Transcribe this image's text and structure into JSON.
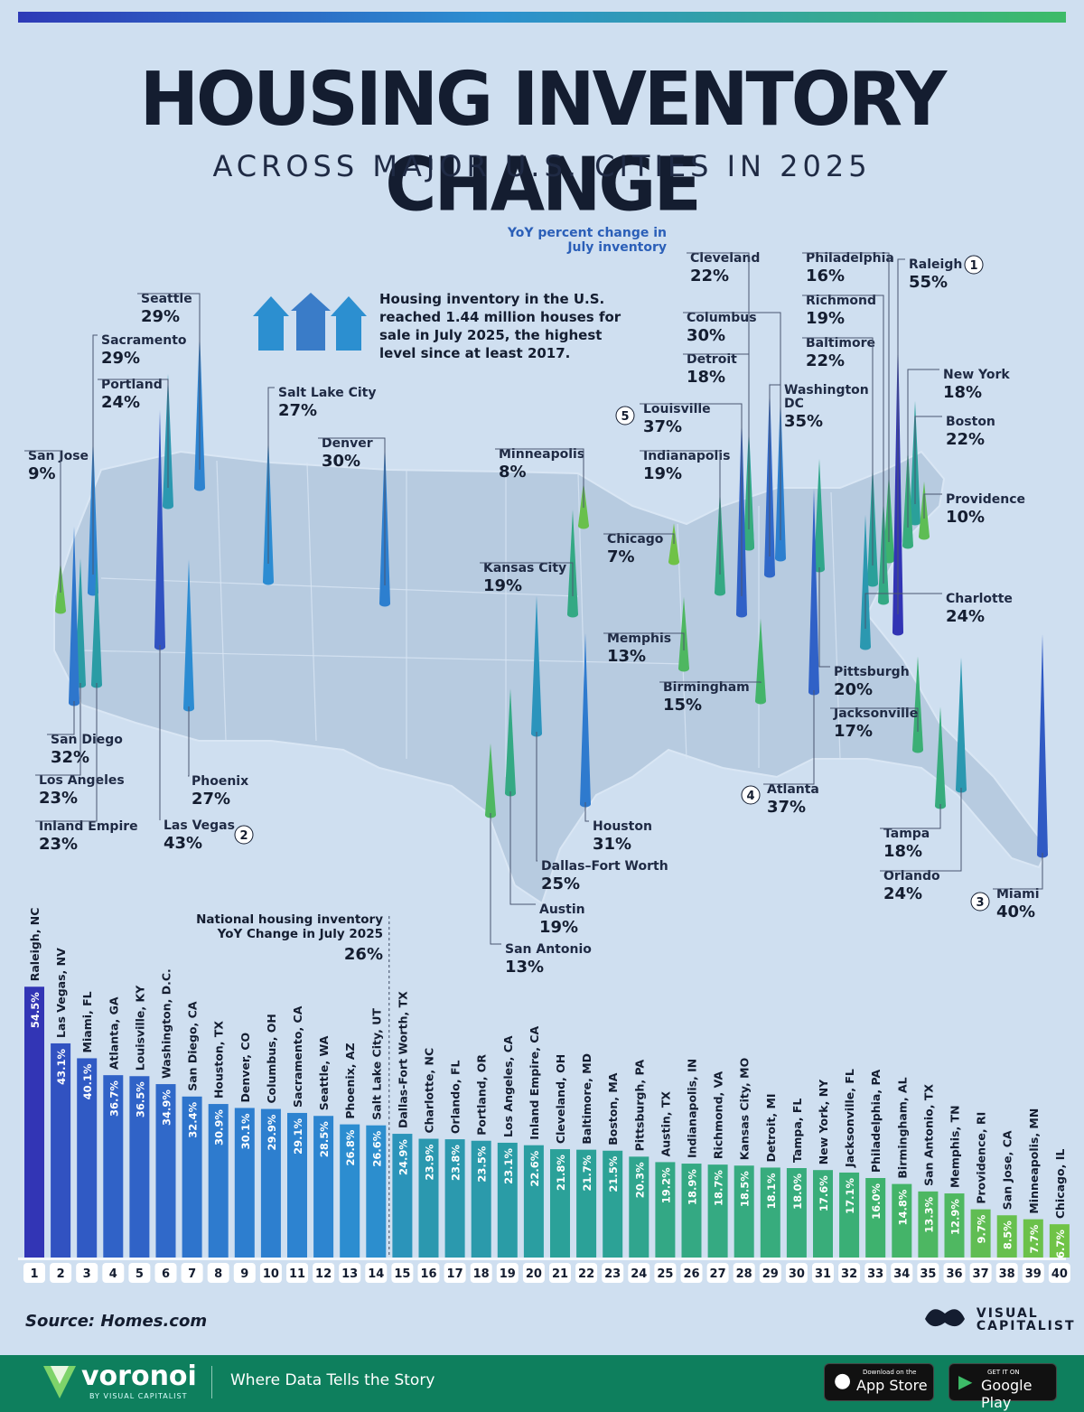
{
  "title": "HOUSING INVENTORY CHANGE",
  "subtitle": "ACROSS MAJOR U.S. CITIES IN 2025",
  "legend_note": "YoY percent change in July inventory",
  "intro": "Housing inventory in the U.S. reached 1.44 million houses for sale in July 2025, the highest level since at least 2017.",
  "national": {
    "label": "National housing inventory YoY Change in July 2025",
    "value": "26%"
  },
  "source": "Source: Homes.com",
  "vc_logo": "VISUAL CAPITALIST",
  "footer": {
    "brand": "voronoi",
    "brand_sub": "BY VISUAL CAPITALIST",
    "tagline": "Where Data Tells the Story",
    "appstore_small": "Download on the",
    "appstore": "App Store",
    "googleplay_small": "GET IT ON",
    "googleplay": "Google Play"
  },
  "colors": {
    "high": "#3338b5",
    "mid": "#2c8fd0",
    "teal": "#2aa39a",
    "low": "#74c443",
    "background": "#cfdff0"
  },
  "map_labels": [
    {
      "city": "Raleigh",
      "value": "55%",
      "rank": "1"
    },
    {
      "city": "Las Vegas",
      "value": "43%",
      "rank": "2"
    },
    {
      "city": "Miami",
      "value": "40%",
      "rank": "3"
    },
    {
      "city": "Atlanta",
      "value": "37%",
      "rank": "4"
    },
    {
      "city": "Louisville",
      "value": "37%",
      "rank": "5"
    },
    {
      "city": "Washington DC",
      "value": "35%"
    },
    {
      "city": "San Diego",
      "value": "32%"
    },
    {
      "city": "Houston",
      "value": "31%"
    },
    {
      "city": "Denver",
      "value": "30%"
    },
    {
      "city": "Columbus",
      "value": "30%"
    },
    {
      "city": "Sacramento",
      "value": "29%"
    },
    {
      "city": "Seattle",
      "value": "29%"
    },
    {
      "city": "Phoenix",
      "value": "27%"
    },
    {
      "city": "Salt Lake City",
      "value": "27%"
    },
    {
      "city": "Dallas–Fort Worth",
      "value": "25%"
    },
    {
      "city": "Charlotte",
      "value": "24%"
    },
    {
      "city": "Orlando",
      "value": "24%"
    },
    {
      "city": "Portland",
      "value": "24%"
    },
    {
      "city": "Los Angeles",
      "value": "23%"
    },
    {
      "city": "Inland Empire",
      "value": "23%"
    },
    {
      "city": "Cleveland",
      "value": "22%"
    },
    {
      "city": "Baltimore",
      "value": "22%"
    },
    {
      "city": "Boston",
      "value": "22%"
    },
    {
      "city": "Pittsburgh",
      "value": "20%"
    },
    {
      "city": "Austin",
      "value": "19%"
    },
    {
      "city": "Indianapolis",
      "value": "19%"
    },
    {
      "city": "Richmond",
      "value": "19%"
    },
    {
      "city": "Kansas City",
      "value": "19%"
    },
    {
      "city": "Detroit",
      "value": "18%"
    },
    {
      "city": "Tampa",
      "value": "18%"
    },
    {
      "city": "New York",
      "value": "18%"
    },
    {
      "city": "Jacksonville",
      "value": "17%"
    },
    {
      "city": "Philadelphia",
      "value": "16%"
    },
    {
      "city": "Birmingham",
      "value": "15%"
    },
    {
      "city": "San Antonio",
      "value": "13%"
    },
    {
      "city": "Memphis",
      "value": "13%"
    },
    {
      "city": "Providence",
      "value": "10%"
    },
    {
      "city": "San Jose",
      "value": "9%"
    },
    {
      "city": "Minneapolis",
      "value": "8%"
    },
    {
      "city": "Chicago",
      "value": "7%"
    }
  ],
  "chart_data": {
    "type": "bar",
    "categories": [
      "Raleigh, NC",
      "Las Vegas, NV",
      "Miami, FL",
      "Atlanta, GA",
      "Louisville, KY",
      "Washington, D.C.",
      "San Diego, CA",
      "Houston, TX",
      "Denver, CO",
      "Columbus, OH",
      "Sacramento, CA",
      "Seattle, WA",
      "Phoenix, AZ",
      "Salt Lake City, UT",
      "Dallas-Fort Worth, TX",
      "Charlotte, NC",
      "Orlando, FL",
      "Portland, OR",
      "Los Angeles, CA",
      "Inland Empire, CA",
      "Cleveland, OH",
      "Baltimore, MD",
      "Boston, MA",
      "Pittsburgh, PA",
      "Austin, TX",
      "Indianapolis, IN",
      "Richmond, VA",
      "Kansas City, MO",
      "Detroit, MI",
      "Tampa, FL",
      "New York, NY",
      "Jacksonville, FL",
      "Philadelphia, PA",
      "Birmingham, AL",
      "San Antonio, TX",
      "Memphis, TN",
      "Providence, RI",
      "San Jose, CA",
      "Minneapolis, MN",
      "Chicago, IL"
    ],
    "values": [
      54.5,
      43.1,
      40.1,
      36.7,
      36.5,
      34.9,
      32.4,
      30.9,
      30.1,
      29.9,
      29.1,
      28.5,
      26.8,
      26.6,
      24.9,
      23.9,
      23.8,
      23.5,
      23.1,
      22.6,
      21.8,
      21.7,
      21.5,
      20.3,
      19.2,
      18.9,
      18.7,
      18.5,
      18.1,
      18.0,
      17.6,
      17.1,
      16.0,
      14.8,
      13.3,
      12.9,
      9.7,
      8.5,
      7.7,
      6.7
    ],
    "value_labels": [
      "54.5%",
      "43.1%",
      "40.1%",
      "36.7%",
      "36.5%",
      "34.9%",
      "32.4%",
      "30.9%",
      "30.1%",
      "29.9%",
      "29.1%",
      "28.5%",
      "26.8%",
      "26.6%",
      "24.9%",
      "23.9%",
      "23.8%",
      "23.5%",
      "23.1%",
      "22.6%",
      "21.8%",
      "21.7%",
      "21.5%",
      "20.3%",
      "19.2%",
      "18.9%",
      "18.7%",
      "18.5%",
      "18.1%",
      "18.0%",
      "17.6%",
      "17.1%",
      "16.0%",
      "14.8%",
      "13.3%",
      "12.9%",
      "9.7%",
      "8.5%",
      "7.7%",
      "6.7%"
    ],
    "ranks": [
      "1",
      "2",
      "3",
      "4",
      "5",
      "6",
      "7",
      "8",
      "9",
      "10",
      "11",
      "12",
      "13",
      "14",
      "15",
      "16",
      "17",
      "18",
      "19",
      "20",
      "21",
      "22",
      "23",
      "24",
      "25",
      "26",
      "27",
      "28",
      "29",
      "30",
      "31",
      "32",
      "33",
      "34",
      "35",
      "36",
      "37",
      "38",
      "39",
      "40"
    ],
    "reference_line": 26,
    "ylim": [
      0,
      60
    ],
    "title": "HOUSING INVENTORY CHANGE",
    "xlabel": "",
    "ylabel": ""
  }
}
